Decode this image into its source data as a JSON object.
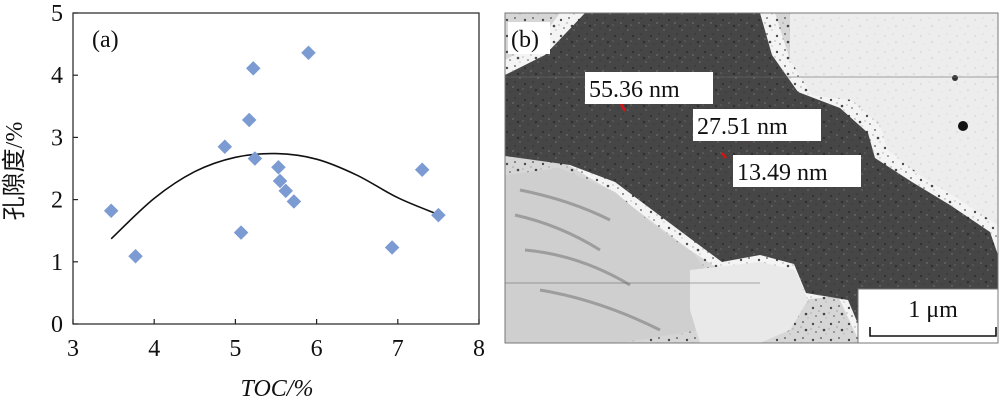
{
  "chart_data": [
    {
      "type": "scatter",
      "panel_label": "(a)",
      "xlabel": "TOC/%",
      "ylabel": "孔隙度/%",
      "xlim": [
        3,
        8
      ],
      "ylim": [
        0,
        5
      ],
      "xticks": [
        3,
        4,
        5,
        6,
        7,
        8
      ],
      "yticks": [
        0,
        1,
        2,
        3,
        4,
        5
      ],
      "grid": false,
      "marker": "diamond",
      "marker_color": "#7b9bd2",
      "series": [
        {
          "x": [
            3.47,
            3.77,
            4.87,
            5.07,
            5.17,
            5.22,
            5.24,
            5.53,
            5.55,
            5.62,
            5.72,
            5.9,
            6.93,
            7.3,
            7.5
          ],
          "y": [
            1.82,
            1.09,
            2.85,
            1.47,
            3.28,
            4.11,
            2.66,
            2.52,
            2.3,
            2.14,
            1.97,
            4.36,
            1.23,
            2.48,
            1.75
          ]
        }
      ],
      "trendline": {
        "type": "quadratic",
        "x_range": [
          3.47,
          7.48
        ],
        "points": [
          {
            "x": 3.47,
            "y": 1.37
          },
          {
            "x": 4.0,
            "y": 2.02
          },
          {
            "x": 4.5,
            "y": 2.45
          },
          {
            "x": 5.0,
            "y": 2.68
          },
          {
            "x": 5.5,
            "y": 2.74
          },
          {
            "x": 6.0,
            "y": 2.65
          },
          {
            "x": 6.5,
            "y": 2.39
          },
          {
            "x": 7.0,
            "y": 2.03
          },
          {
            "x": 7.48,
            "y": 1.77
          }
        ]
      }
    },
    {
      "type": "image",
      "panel_label": "(b)",
      "annotations": [
        "55.36 nm",
        "27.51 nm",
        "13.49 nm"
      ],
      "scale_bar": "1 μm"
    }
  ]
}
